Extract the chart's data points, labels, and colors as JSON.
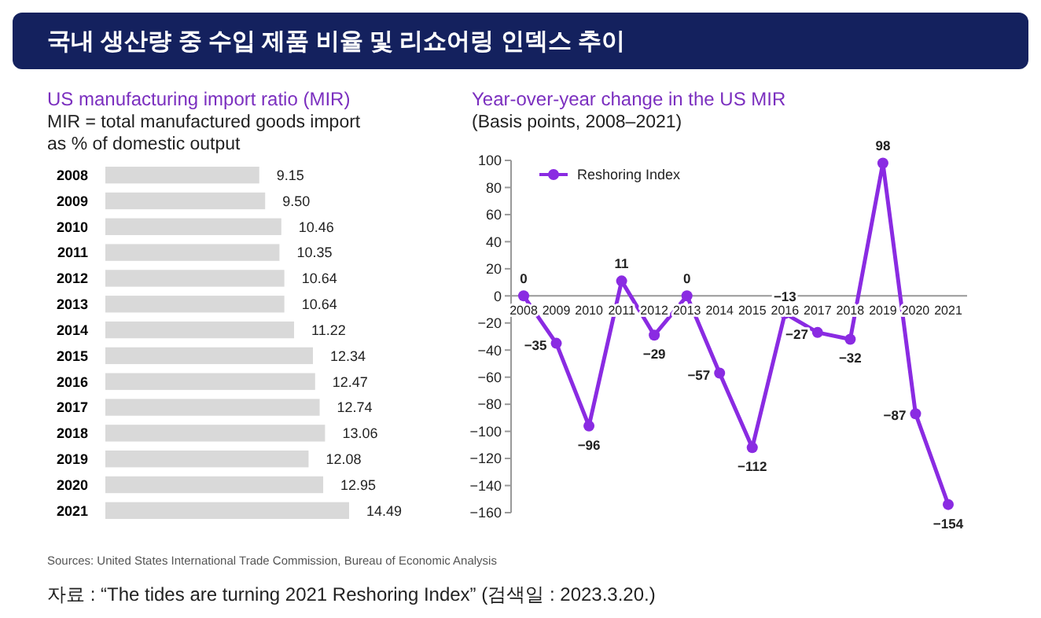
{
  "chart_data": [
    {
      "type": "other",
      "title": "국내 생산량 중 수입 제품 비율 및 리쇼어링 인덱스 추이",
      "annotations": [
        "Sources: United States International Trade Commission, Bureau of Economic Analysis",
        "자료 : “The tides are turning 2021 Reshoring Index” (검색일 : 2023.3.20.)"
      ]
    },
    {
      "type": "bar",
      "orientation": "horizontal",
      "title": "US manufacturing import ratio (MIR)",
      "subtitle": "MIR = total manufactured goods import\nas % of domestic output",
      "categories": [
        "2008",
        "2009",
        "2010",
        "2011",
        "2012",
        "2013",
        "2014",
        "2015",
        "2016",
        "2017",
        "2018",
        "2019",
        "2020",
        "2021"
      ],
      "values": [
        9.15,
        9.5,
        10.46,
        10.35,
        10.64,
        10.64,
        11.22,
        12.34,
        12.47,
        12.74,
        13.06,
        12.08,
        12.95,
        14.49
      ],
      "value_labels": [
        "9.15",
        "9.50",
        "10.46",
        "10.35",
        "10.64",
        "10.64",
        "11.22",
        "12.34",
        "12.47",
        "12.74",
        "13.06",
        "12.08",
        "12.95",
        "14.49"
      ],
      "color": "#d9d9d9",
      "relative": false
    },
    {
      "type": "line",
      "title": "Year-over-year change in the US MIR",
      "subtitle": "(Basis points, 2008–2021)",
      "categories": [
        "2008",
        "2009",
        "2010",
        "2011",
        "2012",
        "2013",
        "2014",
        "2015",
        "2016",
        "2017",
        "2018",
        "2019",
        "2020",
        "2021"
      ],
      "series": [
        {
          "name": "Reshoring Index",
          "color": "#8a2be2",
          "values": [
            0,
            -35,
            -96,
            11,
            -29,
            0,
            -57,
            -112,
            -13,
            -27,
            -32,
            98,
            -87,
            -154
          ]
        }
      ],
      "ylim": [
        -160,
        100
      ],
      "yticks": [
        -160,
        -140,
        -120,
        -100,
        -80,
        -60,
        -40,
        -20,
        0,
        20,
        40,
        60,
        80,
        100
      ],
      "marker": "circle",
      "data_labels": true,
      "legend": "top left"
    }
  ]
}
